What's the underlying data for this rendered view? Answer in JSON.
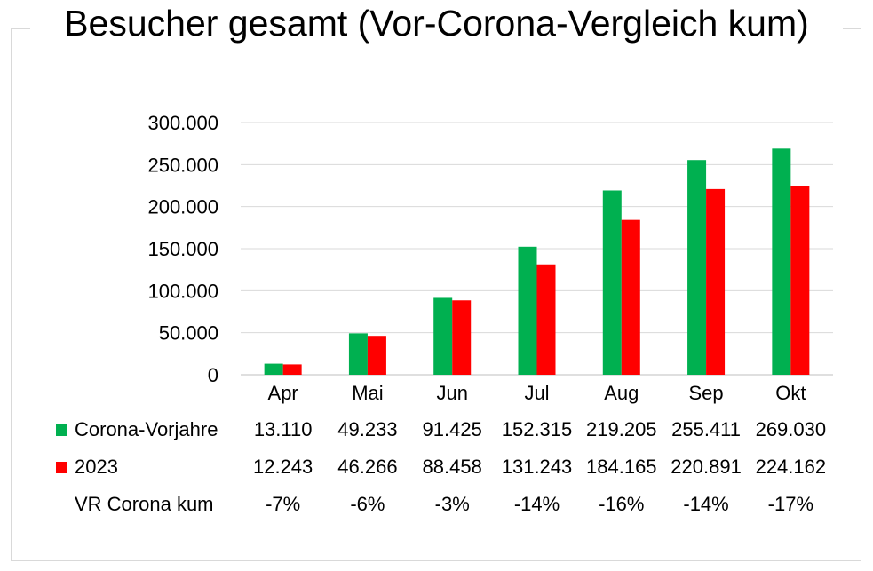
{
  "chart_data": {
    "type": "bar",
    "title": "Besucher gesamt (Vor-Corona-Vergleich kum)",
    "categories": [
      "Apr",
      "Mai",
      "Jun",
      "Jul",
      "Aug",
      "Sep",
      "Okt"
    ],
    "series": [
      {
        "name": "Corona-Vorjahre",
        "color": "#00b050",
        "values": [
          13110,
          49233,
          91425,
          152315,
          219205,
          255411,
          269030
        ]
      },
      {
        "name": "2023",
        "color": "#ff0000",
        "values": [
          12243,
          46266,
          88458,
          131243,
          184165,
          220891,
          224162
        ]
      }
    ],
    "y_ticks": [
      "0",
      "50.000",
      "100.000",
      "150.000",
      "200.000",
      "250.000",
      "300.000"
    ],
    "ylim": [
      0,
      300000
    ],
    "grid": true,
    "legend": "data-table",
    "data_table": {
      "rows": [
        {
          "label": "Corona-Vorjahre",
          "cells": [
            "13.110",
            "49.233",
            "91.425",
            "152.315",
            "219.205",
            "255.411",
            "269.030"
          ]
        },
        {
          "label": "2023",
          "cells": [
            "12.243",
            "46.266",
            "88.458",
            "131.243",
            "184.165",
            "220.891",
            "224.162"
          ]
        },
        {
          "label": "VR Corona kum",
          "cells": [
            "-7%",
            "-6%",
            "-3%",
            "-14%",
            "-16%",
            "-14%",
            "-17%"
          ]
        }
      ]
    }
  }
}
